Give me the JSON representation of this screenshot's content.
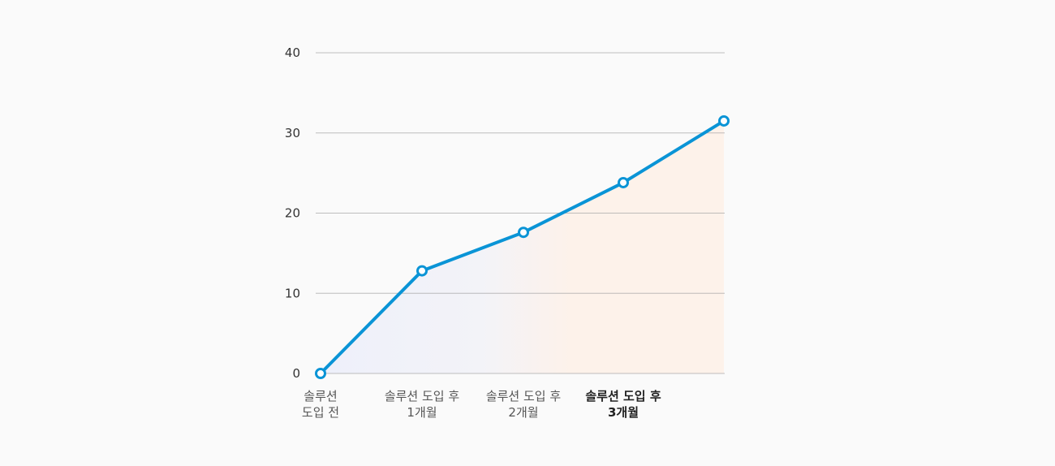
{
  "chart_data": {
    "type": "line",
    "title": "",
    "xlabel": "",
    "ylabel": "",
    "categories": [
      [
        "솔루션",
        "도입 전"
      ],
      [
        "솔루션 도입 후",
        "1개월"
      ],
      [
        "솔루션 도입 후",
        "2개월"
      ],
      [
        "솔루션 도입 후",
        "3개월"
      ],
      [
        "",
        ""
      ]
    ],
    "highlight_category_index": 3,
    "series": [
      {
        "values": [
          0,
          12.8,
          17.6,
          23.8,
          31.5
        ]
      }
    ],
    "ylim": [
      0,
      40
    ],
    "yticks": [
      "0",
      "10",
      "20",
      "30",
      "40"
    ],
    "grid": true,
    "legend": "none",
    "colors": {
      "line": "#0a94d6",
      "marker_fill": "#ffffff",
      "grid": "#a8a8a8",
      "area_left": "#eef0fa",
      "area_right": "#fdf2ea"
    }
  }
}
